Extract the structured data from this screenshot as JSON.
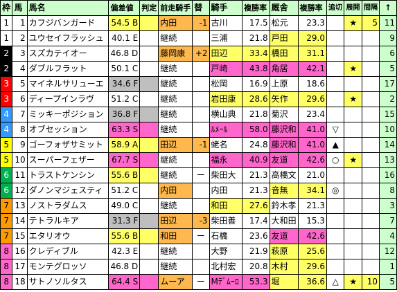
{
  "header": {
    "waku": "枠",
    "uma": "馬",
    "name": "馬名",
    "hensachi": "偏差値",
    "hantei": "判定",
    "zenso": "前走騎手",
    "kae": "替",
    "kishu": "騎手",
    "fuku1": "複勝率",
    "kyusha": "厩舎",
    "fuku2": "複勝率",
    "oikiri": "追切",
    "tenkai": "展開",
    "kankaku": "間隔",
    "sort": "↑"
  },
  "colors": {
    "header_bg": "#ccffcc",
    "yellow": "#ffff66",
    "pink": "#ff66cc",
    "orange": "#ffb84d",
    "lightgreen": "#ccffcc",
    "gray": "#bfbfbf"
  },
  "rows": [
    {
      "waku": "1",
      "uma": "1",
      "name": "カフジバンガード",
      "score": "54.5",
      "grade": "B",
      "zenso": "内田",
      "kae": "-1",
      "kishu": "古川",
      "k_rate": "17.5",
      "kyusha": "松元",
      "s_rate": "23.3",
      "oikiri": "",
      "tenkai": "★",
      "kankaku": "5",
      "last": "11"
    },
    {
      "waku": "1",
      "uma": "2",
      "name": "ユウセイフラッシュ",
      "score": "40.1",
      "grade": "E",
      "zenso": "継続",
      "kae": "",
      "kishu": "三浦",
      "k_rate": "21.8",
      "kyusha": "戸田",
      "s_rate": "29.0",
      "oikiri": "",
      "tenkai": "",
      "kankaku": "",
      "last": "9"
    },
    {
      "waku": "2",
      "uma": "3",
      "name": "スズカテイオー",
      "score": "46.8",
      "grade": "D",
      "zenso": "藤岡康",
      "kae": "+2",
      "kishu": "田辺",
      "k_rate": "33.4",
      "kyusha": "橋田",
      "s_rate": "31.1",
      "oikiri": "",
      "tenkai": "",
      "kankaku": "",
      "last": "6"
    },
    {
      "waku": "2",
      "uma": "4",
      "name": "ダブルフラット",
      "score": "50.1",
      "grade": "C",
      "zenso": "継続",
      "kae": "",
      "kishu": "戸崎",
      "k_rate": "43.8",
      "kyusha": "角居",
      "s_rate": "42.1",
      "oikiri": "",
      "tenkai": "★",
      "kankaku": "",
      "last": "5"
    },
    {
      "waku": "3",
      "uma": "5",
      "name": "マイネルサリューエ",
      "score": "34.6",
      "grade": "F",
      "zenso": "継続",
      "kae": "",
      "kishu": "松岡",
      "k_rate": "16.9",
      "kyusha": "上原",
      "s_rate": "18.6",
      "oikiri": "",
      "tenkai": "",
      "kankaku": "",
      "last": "17"
    },
    {
      "waku": "3",
      "uma": "6",
      "name": "ディープインラヴ",
      "score": "51.2",
      "grade": "C",
      "zenso": "継続",
      "kae": "",
      "kishu": "岩田康",
      "k_rate": "28.6",
      "kyusha": "矢作",
      "s_rate": "29.6",
      "oikiri": "",
      "tenkai": "★",
      "kankaku": "",
      "last": "2"
    },
    {
      "waku": "4",
      "uma": "7",
      "name": "ミッキーポジション",
      "score": "36.8",
      "grade": "F",
      "zenso": "継続",
      "kae": "",
      "kishu": "横山典",
      "k_rate": "21.8",
      "kyusha": "菊沢",
      "s_rate": "23.4",
      "oikiri": "",
      "tenkai": "",
      "kankaku": "",
      "last": "15"
    },
    {
      "waku": "4",
      "uma": "8",
      "name": "オブセッション",
      "score": "63.3",
      "grade": "S",
      "zenso": "継続",
      "kae": "",
      "kishu": "ﾙﾒｰﾙ",
      "k_rate": "58.0",
      "kyusha": "藤沢和",
      "s_rate": "41.0",
      "oikiri": "▽",
      "tenkai": "",
      "kankaku": "",
      "last": "10"
    },
    {
      "waku": "5",
      "uma": "9",
      "name": "ゴーフォザサミット",
      "score": "58.9",
      "grade": "A",
      "zenso": "田辺",
      "kae": "-1",
      "kishu": "蛯名",
      "k_rate": "24.8",
      "kyusha": "藤沢和",
      "s_rate": "41.0",
      "oikiri": "▲",
      "tenkai": "",
      "kankaku": "",
      "last": "14"
    },
    {
      "waku": "5",
      "uma": "10",
      "name": "スーパーフェザー",
      "score": "67.7",
      "grade": "S",
      "zenso": "継続",
      "kae": "",
      "kishu": "福永",
      "k_rate": "40.9",
      "kyusha": "友道",
      "s_rate": "42.6",
      "oikiri": "○",
      "tenkai": "★",
      "kankaku": "",
      "last": "13"
    },
    {
      "waku": "6",
      "uma": "11",
      "name": "トラストケンシン",
      "score": "55.6",
      "grade": "B",
      "zenso": "継続",
      "kae": "ー",
      "kishu": "柴田大",
      "k_rate": "21.3",
      "kyusha": "高橋文",
      "s_rate": "21.0",
      "oikiri": "",
      "tenkai": "",
      "kankaku": "",
      "last": "16"
    },
    {
      "waku": "6",
      "uma": "12",
      "name": "ダノンマジェスティ",
      "score": "51.2",
      "grade": "C",
      "zenso": "内田",
      "kae": "",
      "kishu": "内田",
      "k_rate": "21.3",
      "kyusha": "音無",
      "s_rate": "34.1",
      "oikiri": "◎",
      "tenkai": "",
      "kankaku": "",
      "last": "8"
    },
    {
      "waku": "7",
      "uma": "13",
      "name": "ノストラダムス",
      "score": "49.0",
      "grade": "C",
      "zenso": "継続",
      "kae": "",
      "kishu": "和田",
      "k_rate": "27.6",
      "kyusha": "鈴木孝",
      "s_rate": "21.3",
      "oikiri": "",
      "tenkai": "",
      "kankaku": "",
      "last": "3"
    },
    {
      "waku": "7",
      "uma": "14",
      "name": "テトラルキア",
      "score": "31.3",
      "grade": "F",
      "zenso": "田辺",
      "kae": "-3",
      "kishu": "柴田善",
      "k_rate": "17.4",
      "kyusha": "大和田",
      "s_rate": "15.3",
      "oikiri": "",
      "tenkai": "",
      "kankaku": "",
      "last": "7"
    },
    {
      "waku": "7",
      "uma": "15",
      "name": "エタリオウ",
      "score": "55.6",
      "grade": "B",
      "zenso": "和田",
      "kae": "ー",
      "kishu": "石橋",
      "k_rate": "23.6",
      "kyusha": "友道",
      "s_rate": "42.6",
      "oikiri": "",
      "tenkai": "",
      "kankaku": "",
      "last": "4"
    },
    {
      "waku": "8",
      "uma": "16",
      "name": "クレディブル",
      "score": "42.3",
      "grade": "E",
      "zenso": "継続",
      "kae": "",
      "kishu": "大野",
      "k_rate": "21.9",
      "kyusha": "萩原",
      "s_rate": "25.6",
      "oikiri": "",
      "tenkai": "",
      "kankaku": "",
      "last": "12"
    },
    {
      "waku": "8",
      "uma": "17",
      "name": "モンテグロッソ",
      "score": "46.8",
      "grade": "D",
      "zenso": "継続",
      "kae": "",
      "kishu": "北村宏",
      "k_rate": "20.8",
      "kyusha": "木村",
      "s_rate": "29.6",
      "oikiri": "",
      "tenkai": "",
      "kankaku": "",
      "last": "1"
    },
    {
      "waku": "8",
      "uma": "18",
      "name": "サトノソルタス",
      "score": "64.4",
      "grade": "S",
      "zenso": "ムーア",
      "kae": "ー",
      "kishu": "Mﾃﾞﾑｰﾛ",
      "k_rate": "53.3",
      "kyusha": "堀",
      "s_rate": "36.6",
      "oikiri": "△",
      "tenkai": "★",
      "kankaku": "10",
      "last": "5"
    }
  ]
}
